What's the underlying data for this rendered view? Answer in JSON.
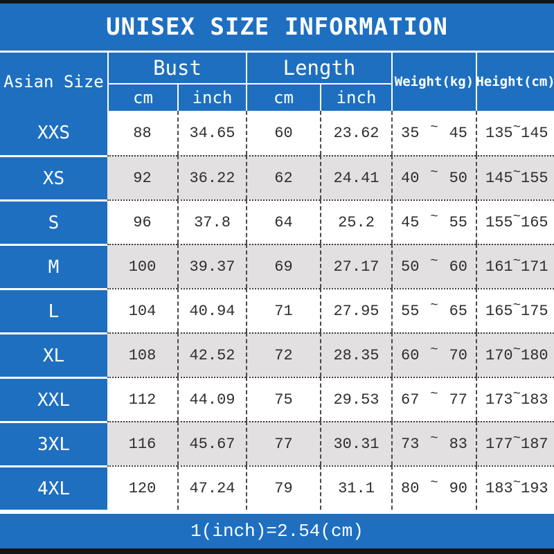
{
  "title": "UNISEX SIZE INFORMATION",
  "header": {
    "corner": "Asian Size",
    "group_bust": "Bust",
    "group_length": "Length",
    "unit_cm": "cm",
    "unit_inch": "inch",
    "weight": "Weight(kg)",
    "height": "Height(cm)"
  },
  "sym": {
    "tilde": "~"
  },
  "footer": {
    "note": "1(inch)=2.54(cm)"
  },
  "colors": {
    "blue": "#1e6fc0",
    "row_alt": "#e2e0e1",
    "bar_black": "#141414",
    "text_dark": "#2e2e2e",
    "divider": "#4a4a4a",
    "white": "#ffffff"
  },
  "chart_data": {
    "type": "table",
    "title": "UNISEX SIZE INFORMATION",
    "footnote": "1(inch)=2.54(cm)",
    "columns": [
      "Asian Size",
      "Bust cm",
      "Bust inch",
      "Length cm",
      "Length inch",
      "Weight(kg)",
      "Height(cm)"
    ],
    "rows": [
      {
        "size": "XXS",
        "bust_cm": "88",
        "bust_inch": "34.65",
        "length_cm": "60",
        "length_inch": "23.62",
        "weight_min": "35",
        "weight_max": "45",
        "height_min": "135",
        "height_max": "145"
      },
      {
        "size": "XS",
        "bust_cm": "92",
        "bust_inch": "36.22",
        "length_cm": "62",
        "length_inch": "24.41",
        "weight_min": "40",
        "weight_max": "50",
        "height_min": "145",
        "height_max": "155"
      },
      {
        "size": "S",
        "bust_cm": "96",
        "bust_inch": "37.8",
        "length_cm": "64",
        "length_inch": "25.2",
        "weight_min": "45",
        "weight_max": "55",
        "height_min": "155",
        "height_max": "165"
      },
      {
        "size": "M",
        "bust_cm": "100",
        "bust_inch": "39.37",
        "length_cm": "69",
        "length_inch": "27.17",
        "weight_min": "50",
        "weight_max": "60",
        "height_min": "161",
        "height_max": "171"
      },
      {
        "size": "L",
        "bust_cm": "104",
        "bust_inch": "40.94",
        "length_cm": "71",
        "length_inch": "27.95",
        "weight_min": "55",
        "weight_max": "65",
        "height_min": "165",
        "height_max": "175"
      },
      {
        "size": "XL",
        "bust_cm": "108",
        "bust_inch": "42.52",
        "length_cm": "72",
        "length_inch": "28.35",
        "weight_min": "60",
        "weight_max": "70",
        "height_min": "170",
        "height_max": "180"
      },
      {
        "size": "XXL",
        "bust_cm": "112",
        "bust_inch": "44.09",
        "length_cm": "75",
        "length_inch": "29.53",
        "weight_min": "67",
        "weight_max": "77",
        "height_min": "173",
        "height_max": "183"
      },
      {
        "size": "3XL",
        "bust_cm": "116",
        "bust_inch": "45.67",
        "length_cm": "77",
        "length_inch": "30.31",
        "weight_min": "73",
        "weight_max": "83",
        "height_min": "177",
        "height_max": "187"
      },
      {
        "size": "4XL",
        "bust_cm": "120",
        "bust_inch": "47.24",
        "length_cm": "79",
        "length_inch": "31.1",
        "weight_min": "80",
        "weight_max": "90",
        "height_min": "183",
        "height_max": "193"
      }
    ]
  }
}
